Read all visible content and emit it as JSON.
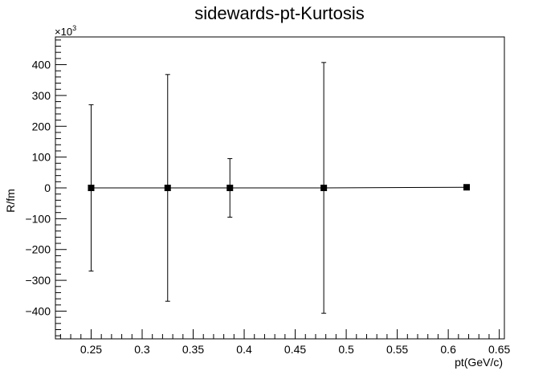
{
  "chart_data": {
    "type": "scatter",
    "title": "sidewards-pt-Kurtosis",
    "xlabel": "pt(GeV/c)",
    "ylabel": "R/fm",
    "y_multiplier_label": "×10",
    "y_multiplier_exponent": "3",
    "xlim": [
      0.215,
      0.655
    ],
    "ylim": [
      -490,
      490
    ],
    "x_ticks": [
      0.25,
      0.3,
      0.35,
      0.4,
      0.45,
      0.5,
      0.55,
      0.6,
      0.65
    ],
    "x_tick_labels": [
      "0.25",
      "0.3",
      "0.35",
      "0.4",
      "0.45",
      "0.5",
      "0.55",
      "0.6",
      "0.65"
    ],
    "y_ticks": [
      -400,
      -300,
      -200,
      -100,
      0,
      100,
      200,
      300,
      400
    ],
    "y_tick_labels": [
      "−400",
      "−300",
      "−200",
      "−100",
      "0",
      "100",
      "200",
      "300",
      "400"
    ],
    "grid": false,
    "legend": "none",
    "marker_color": "#000000",
    "series": [
      {
        "x": [
          0.25,
          0.325,
          0.386,
          0.478,
          0.618
        ],
        "y": [
          0,
          0,
          0,
          0,
          2
        ],
        "yerr": [
          270,
          368,
          95,
          407,
          0
        ]
      }
    ]
  }
}
